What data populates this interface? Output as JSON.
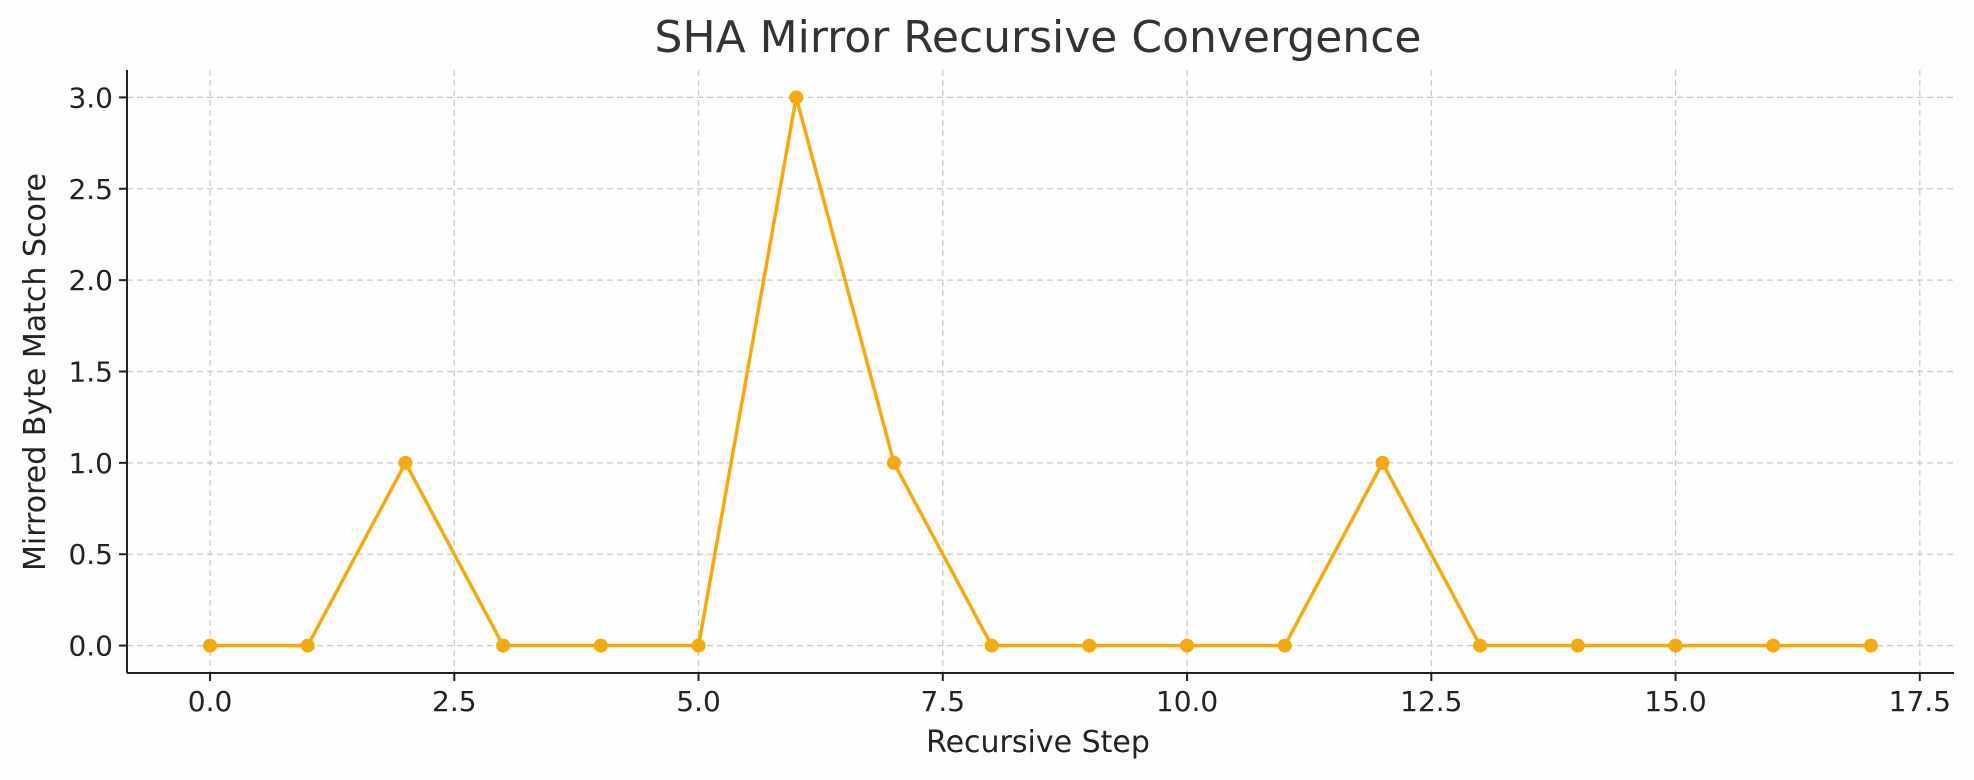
{
  "chart_data": {
    "type": "line",
    "title": "SHA Mirror Recursive Convergence",
    "xlabel": "Recursive Step",
    "ylabel": "Mirrored Byte Match Score",
    "xlim": [
      -0.85,
      17.85
    ],
    "ylim": [
      -0.15,
      3.15
    ],
    "x_ticks": [
      0.0,
      2.5,
      5.0,
      7.5,
      10.0,
      12.5,
      15.0,
      17.5
    ],
    "x_tick_labels": [
      "0.0",
      "2.5",
      "5.0",
      "7.5",
      "10.0",
      "12.5",
      "15.0",
      "17.5"
    ],
    "y_ticks": [
      0.0,
      0.5,
      1.0,
      1.5,
      2.0,
      2.5,
      3.0
    ],
    "y_tick_labels": [
      "0.0",
      "0.5",
      "1.0",
      "1.5",
      "2.0",
      "2.5",
      "3.0"
    ],
    "grid": true,
    "series": [
      {
        "color": "#f5a90f",
        "marker": "circle",
        "x": [
          0,
          1,
          2,
          3,
          4,
          5,
          6,
          7,
          8,
          9,
          10,
          11,
          12,
          13,
          14,
          15,
          16,
          17
        ],
        "y": [
          0,
          0,
          1,
          0,
          0,
          0,
          3,
          1,
          0,
          0,
          0,
          0,
          1,
          0,
          0,
          0,
          0,
          0
        ]
      }
    ]
  }
}
